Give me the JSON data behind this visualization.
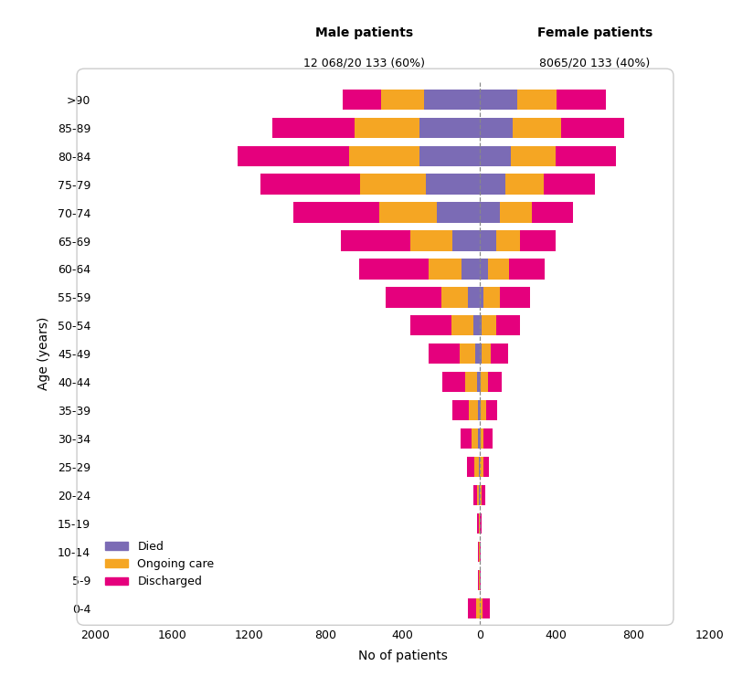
{
  "age_groups": [
    "0-4",
    "5-9",
    "10-14",
    "15-19",
    "20-24",
    "25-29",
    "30-34",
    "35-39",
    "40-44",
    "45-49",
    "50-54",
    "55-59",
    "60-64",
    "65-69",
    "70-74",
    "75-79",
    "80-84",
    "85-89",
    ">90"
  ],
  "male_discharged": [
    40,
    5,
    3,
    8,
    18,
    38,
    58,
    85,
    120,
    160,
    215,
    290,
    360,
    360,
    450,
    520,
    580,
    430,
    200
  ],
  "male_ongoing": [
    18,
    4,
    3,
    4,
    10,
    22,
    32,
    45,
    60,
    85,
    115,
    140,
    170,
    220,
    300,
    340,
    370,
    340,
    220
  ],
  "male_died": [
    0,
    0,
    0,
    0,
    2,
    5,
    8,
    10,
    15,
    20,
    30,
    60,
    95,
    140,
    220,
    280,
    310,
    310,
    290
  ],
  "female_discharged": [
    38,
    4,
    3,
    5,
    18,
    28,
    45,
    58,
    68,
    88,
    125,
    155,
    185,
    185,
    210,
    265,
    315,
    330,
    260
  ],
  "female_ongoing": [
    18,
    4,
    3,
    4,
    10,
    18,
    18,
    28,
    38,
    50,
    75,
    85,
    110,
    125,
    170,
    200,
    230,
    250,
    205
  ],
  "female_died": [
    0,
    0,
    0,
    0,
    0,
    2,
    5,
    5,
    8,
    10,
    12,
    22,
    45,
    85,
    105,
    135,
    165,
    175,
    195
  ],
  "color_died": "#7B6BB5",
  "color_ongoing": "#F5A623",
  "color_discharged": "#E5007D",
  "title_male": "Male patients",
  "subtitle_male": "12 068/20 133 (60%)",
  "title_female": "Female patients",
  "subtitle_female": "8065/20 133 (40%)",
  "xlabel": "No of patients",
  "ylabel": "Age (years)",
  "xlim": [
    -2000,
    1200
  ],
  "xticks": [
    -2000,
    -1600,
    -1200,
    -800,
    -400,
    0,
    400,
    800,
    1200
  ],
  "xticklabels": [
    "2000",
    "1600",
    "1200",
    "800",
    "400",
    "0",
    "400",
    "800",
    "1200"
  ],
  "bar_height": 0.72
}
